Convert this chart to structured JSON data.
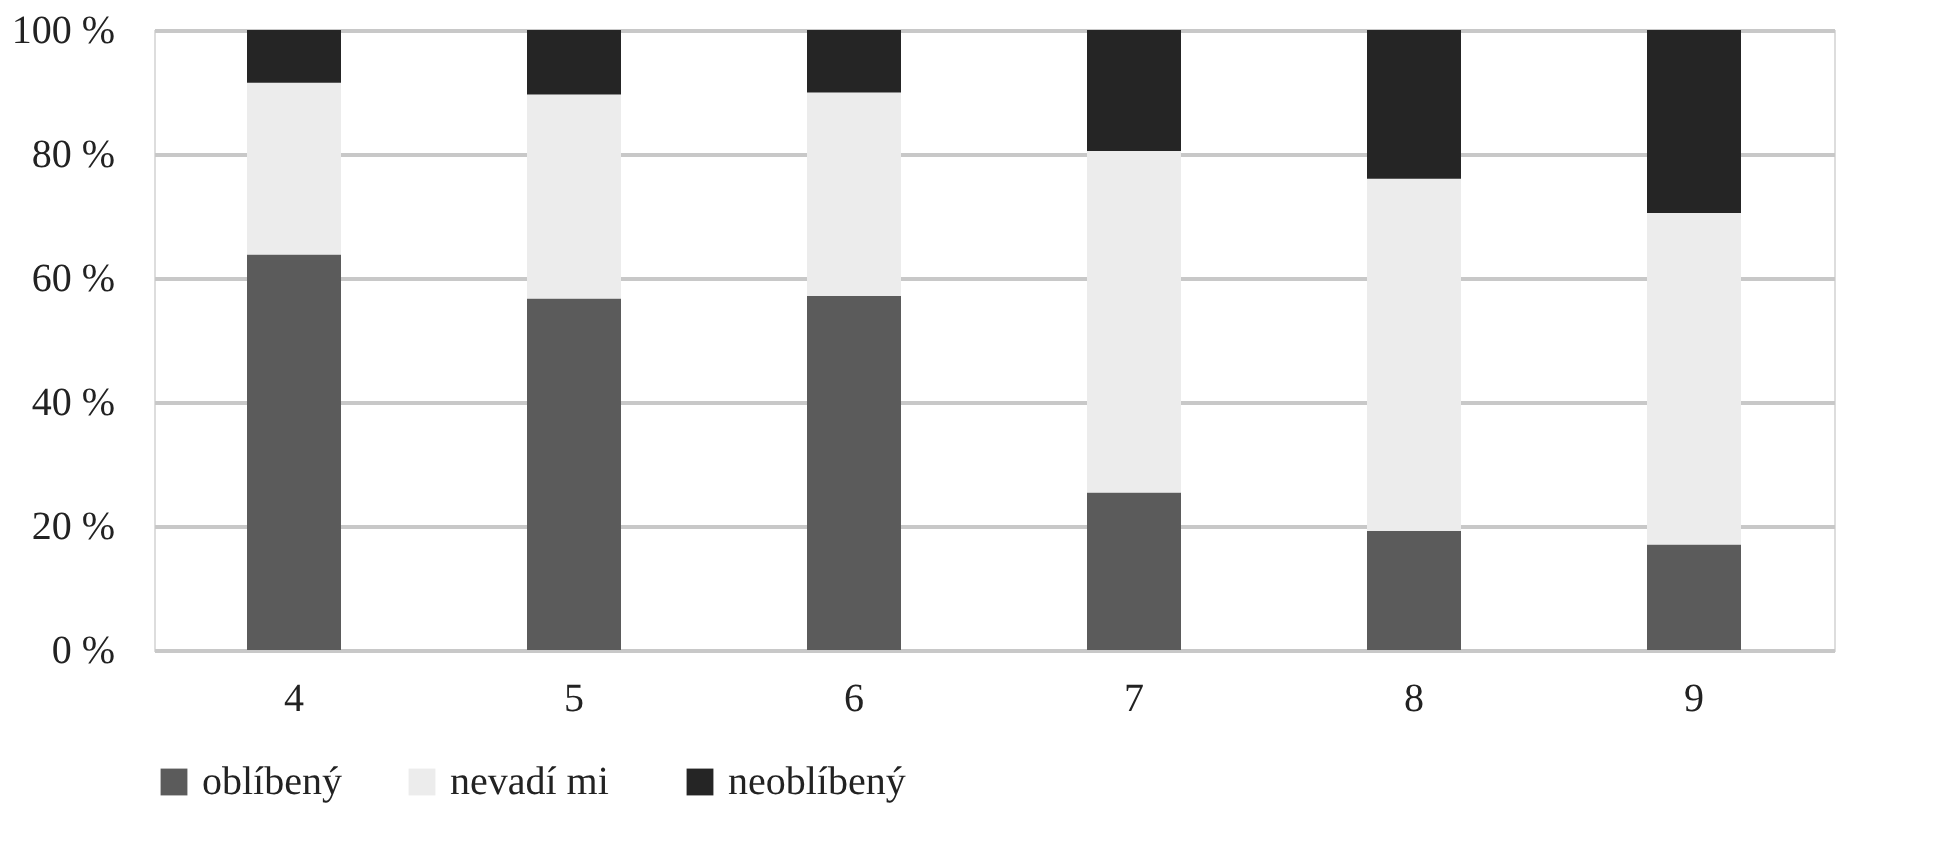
{
  "chart_data": {
    "type": "bar",
    "stacked": true,
    "categories": [
      "4",
      "5",
      "6",
      "7",
      "8",
      "9"
    ],
    "series": [
      {
        "name": "oblíbený",
        "color": "#5b5b5b",
        "values": [
          63.8,
          56.7,
          57.1,
          25.4,
          19.2,
          17.0
        ]
      },
      {
        "name": "nevadí  mi",
        "color": "#ececec",
        "values": [
          27.7,
          32.9,
          32.8,
          55.1,
          56.8,
          53.5
        ]
      },
      {
        "name": "neoblíbený",
        "color": "#252525",
        "values": [
          8.5,
          10.4,
          10.1,
          19.5,
          24.0,
          29.5
        ]
      }
    ],
    "ylim": [
      0,
      100
    ],
    "yticks": [
      {
        "value": 0,
        "label": "0 %"
      },
      {
        "value": 20,
        "label": "20 %"
      },
      {
        "value": 40,
        "label": "40 %"
      },
      {
        "value": 60,
        "label": "60 %"
      },
      {
        "value": 80,
        "label": "80 %"
      },
      {
        "value": 100,
        "label": "100 %"
      }
    ],
    "grid": "y",
    "legend": "bottom"
  }
}
